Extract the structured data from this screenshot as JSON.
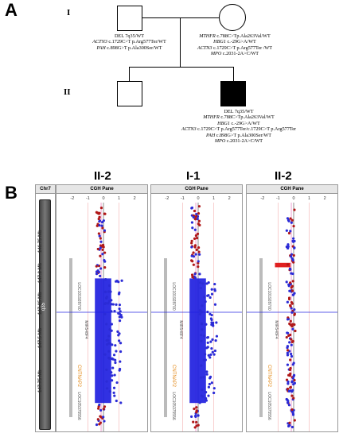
{
  "panel_a": {
    "letter": "A",
    "gen_1": "I",
    "gen_2": "II",
    "father_genotype": [
      {
        "gene": "",
        "text": "DEL 7q35/WT"
      },
      {
        "gene": "ACTN3",
        "text": " c.1729C>T p.Arg577Ter/WT"
      },
      {
        "gene": "PAH",
        "text": " c.898G>T p.Ala300Ser/WT"
      }
    ],
    "mother_genotype": [
      {
        "gene": "MTHFR",
        "text": " c.788C>Tp.Ala263Val/WT"
      },
      {
        "gene": "HBG1",
        "text": " c.-29G>A/WT"
      },
      {
        "gene": "ACTN3",
        "text": " c.1729C>T p.Arg577Ter /WT"
      },
      {
        "gene": "MPO",
        "text": " c.2031-2A>C/WT"
      }
    ],
    "proband_genotype": [
      {
        "gene": "",
        "text": "DEL 7q35/WT"
      },
      {
        "gene": "MTHFR",
        "text": " c.788C>Tp.Ala263Val/WT"
      },
      {
        "gene": "HBG1",
        "text": " c.-29G>A/WT"
      },
      {
        "gene": "ACTN3",
        "text": " c.1729C>T p.Arg577Ter/c.1729C>T p.Arg577Ter"
      },
      {
        "gene": "PAH",
        "text": " c.898G>T p.Ala300Ser/WT"
      },
      {
        "gene": "MPO",
        "text": " c.2031-2A>C/WT"
      }
    ]
  },
  "panel_b": {
    "letter": "B",
    "chrom_label": "Chr7",
    "band_label": "q35",
    "ideogram_ticks": [
      "146.75 Mb",
      "147.0 Mb",
      "147.25 Mb",
      "147.5 Mb",
      "147.75 Mb"
    ],
    "cgh_panel_title": "CGH Pane",
    "axis_ticks": [
      "-2",
      "-1",
      "0",
      "1",
      "2"
    ],
    "genes": [
      "LOC101928700",
      "CNTNAP2",
      "MIR548F4",
      "LOC105375556"
    ],
    "samples": [
      {
        "title": "II-2",
        "mode": "deletion",
        "loss_start": 0.33,
        "loss_end": 0.89
      },
      {
        "title": "I-1",
        "mode": "deletion",
        "loss_start": 0.33,
        "loss_end": 0.89
      },
      {
        "title": "II-2",
        "mode": "normal",
        "loss_start": 0.26,
        "loss_end": 0.28
      }
    ],
    "colors": {
      "loss": "#1f1fe0",
      "gain_point": "#b01818",
      "deletion_bar": "#e02020",
      "gene": "#e38a1a"
    }
  }
}
